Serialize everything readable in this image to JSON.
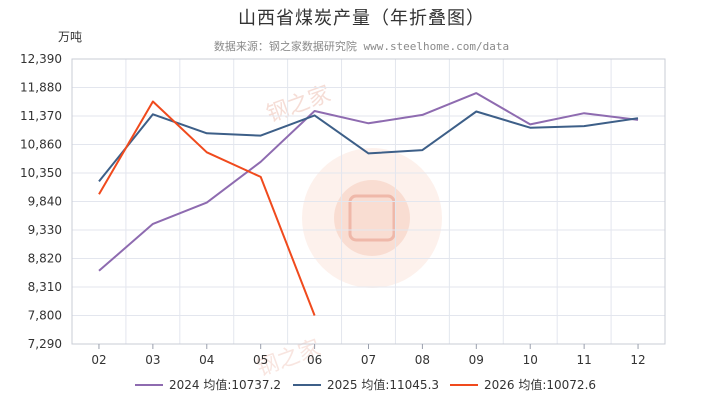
{
  "title": "山西省煤炭产量（年折叠图）",
  "subtitle": "数据来源：钢之家数据研究院 www.steelhome.com/data",
  "chart_data": {
    "type": "line",
    "ylabel": "万吨",
    "ylim": [
      7290,
      12390
    ],
    "yticks": [
      "12,390",
      "11,880",
      "11,370",
      "10,860",
      "10,350",
      "9,840",
      "9,330",
      "8,820",
      "8,310",
      "7,800",
      "7,290"
    ],
    "ytick_values": [
      12390,
      11880,
      11370,
      10860,
      10350,
      9840,
      9330,
      8820,
      8310,
      7800,
      7290
    ],
    "categories": [
      "02",
      "03",
      "04",
      "05",
      "06",
      "07",
      "08",
      "09",
      "10",
      "11",
      "12"
    ],
    "legend_position": "bottom",
    "grid": true,
    "series": [
      {
        "name": "2024",
        "legend_label": "2024 均值:10737.2",
        "color": "#8e6bb0",
        "values": [
          8600,
          9440,
          9820,
          10550,
          11460,
          11240,
          11390,
          11780,
          11220,
          11420,
          11300
        ]
      },
      {
        "name": "2025",
        "legend_label": "2025 均值:11045.3",
        "color": "#3d5f88",
        "values": [
          10200,
          11400,
          11060,
          11020,
          11380,
          10700,
          10760,
          11450,
          11160,
          11190,
          11330
        ]
      },
      {
        "name": "2026",
        "legend_label": "2026 均值:10072.6",
        "color": "#f04a1d",
        "values": [
          9970,
          11630,
          10720,
          10280,
          7800,
          null,
          null,
          null,
          null,
          null,
          null
        ]
      }
    ]
  },
  "watermark": {
    "text": "钢之家",
    "site": "www.steelhome.com"
  }
}
